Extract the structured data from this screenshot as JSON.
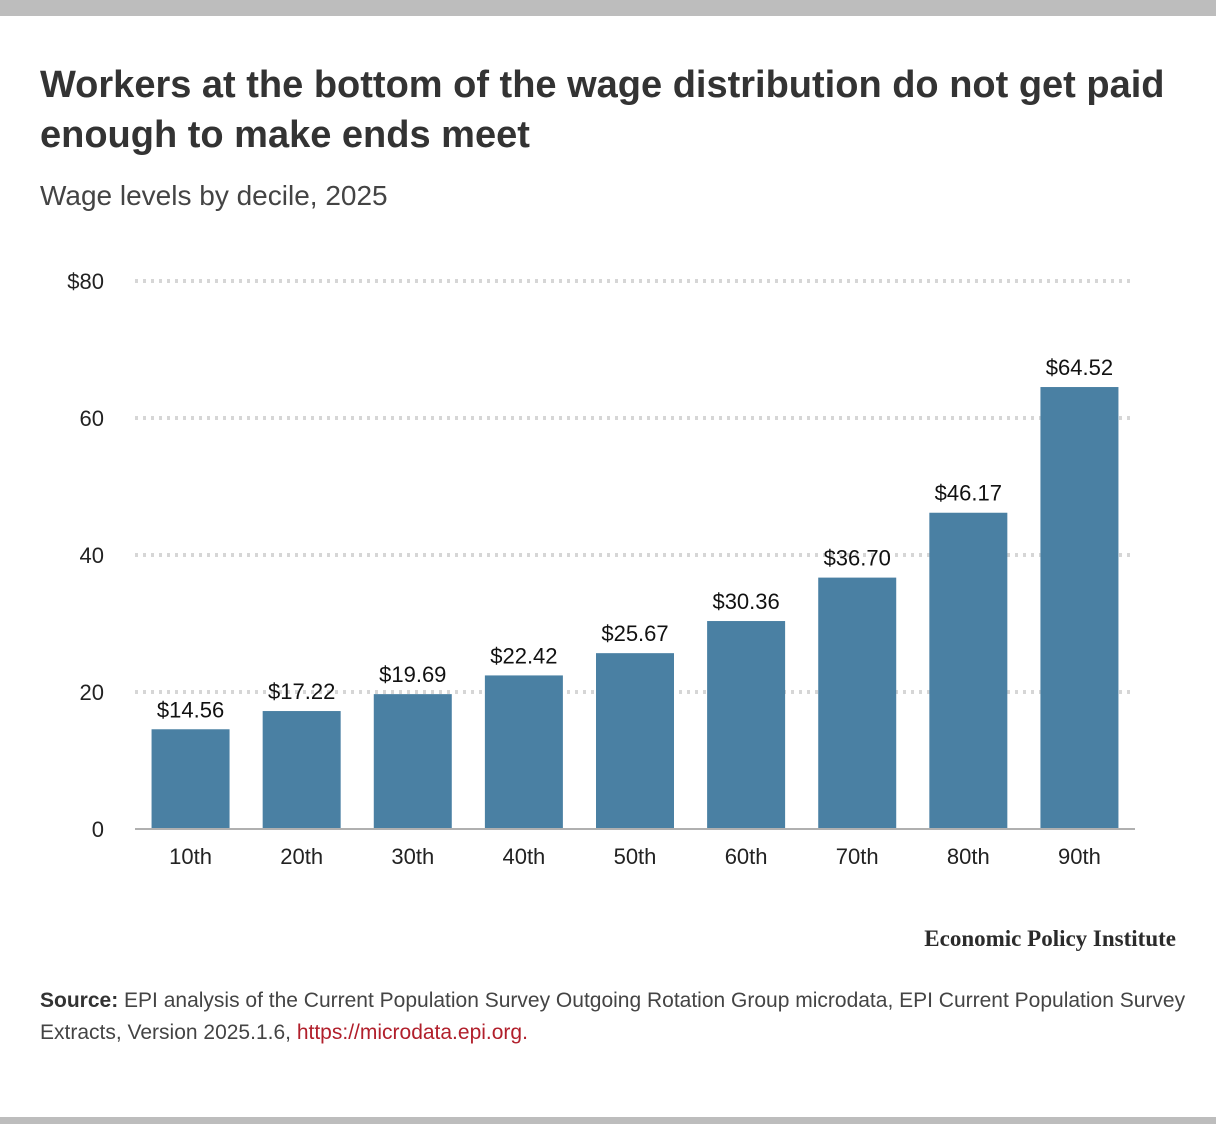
{
  "title": "Workers at the bottom of the wage distribution do not get paid enough to make ends meet",
  "subtitle": "Wage levels by decile, 2025",
  "brand": "Economic Policy Institute",
  "source": {
    "label": "Source:",
    "text": "EPI analysis of the Current Population Survey Outgoing Rotation Group microdata, EPI Current Population Survey Extracts, Version 2025.1.6,",
    "link": "https://microdata.epi.org."
  },
  "colors": {
    "bar": "#4a80a3",
    "grid": "#d6d6d6",
    "axis": "#b0b0b0",
    "link": "#b11f2b"
  },
  "chart_data": {
    "type": "bar",
    "categories": [
      "10th",
      "20th",
      "30th",
      "40th",
      "50th",
      "60th",
      "70th",
      "80th",
      "90th"
    ],
    "values": [
      14.56,
      17.22,
      19.69,
      22.42,
      25.67,
      30.36,
      36.7,
      46.17,
      64.52
    ],
    "data_labels": [
      "$14.56",
      "$17.22",
      "$19.69",
      "$22.42",
      "$25.67",
      "$30.36",
      "$36.70",
      "$46.17",
      "$64.52"
    ],
    "ylim": [
      0,
      80
    ],
    "yticks": [
      0,
      20,
      40,
      60,
      80
    ],
    "ytick_labels": [
      "0",
      "20",
      "40",
      "60",
      "$80"
    ],
    "xlabel": "",
    "ylabel": "",
    "grid": true,
    "legend": "none"
  }
}
